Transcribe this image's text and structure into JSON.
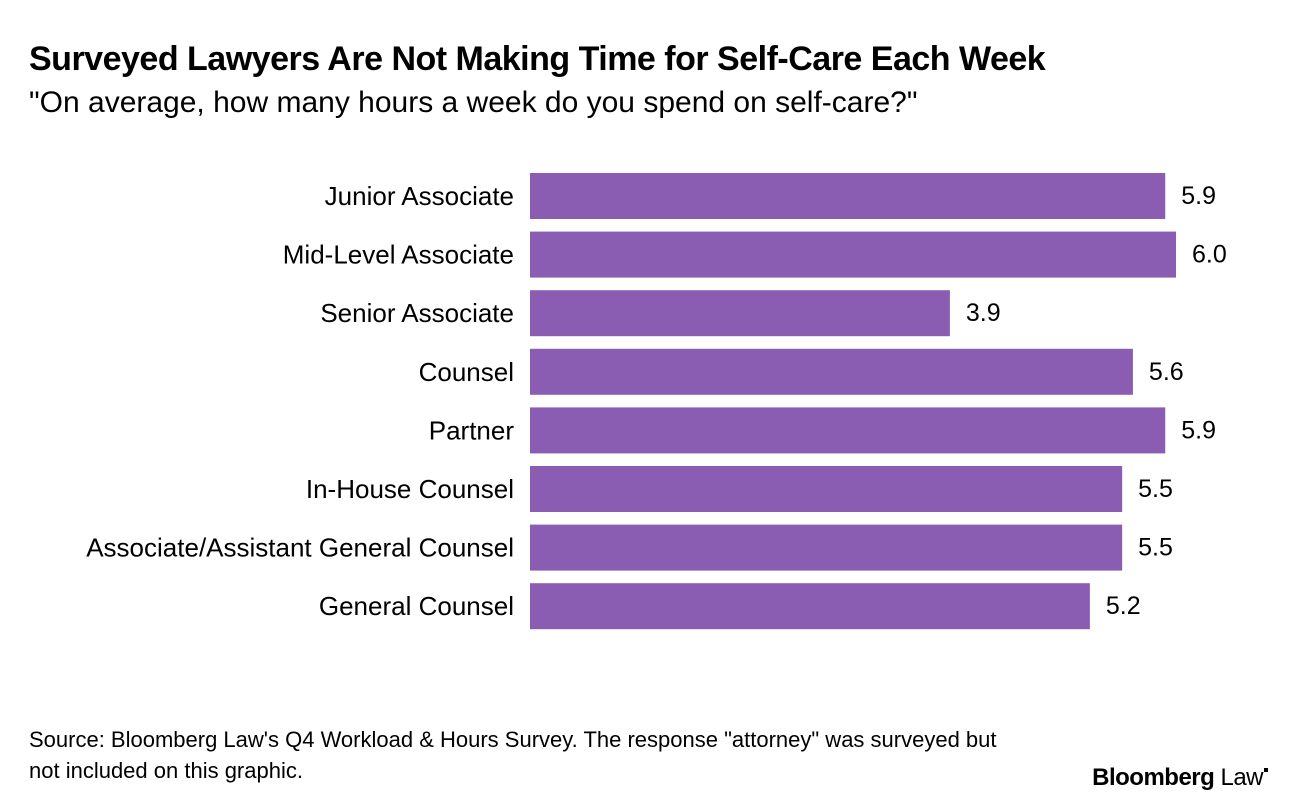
{
  "header": {
    "title": "Surveyed Lawyers Are Not Making Time for Self-Care Each Week",
    "subtitle": "\"On average, how many hours a week do you spend on self-care?\""
  },
  "footer": {
    "source": "Source: Bloomberg Law's Q4 Workload & Hours Survey. The response \"attorney\" was surveyed but not included on this graphic.",
    "logo_primary": "Bloomberg",
    "logo_secondary": "Law"
  },
  "colors": {
    "bar": "#8a5db3",
    "text": "#000000",
    "background": "#ffffff"
  },
  "chart_data": {
    "type": "bar",
    "orientation": "horizontal",
    "title": "Surveyed Lawyers Are Not Making Time for Self-Care Each Week",
    "subtitle": "\"On average, how many hours a week do you spend on self-care?\"",
    "xlabel": "",
    "ylabel": "",
    "categories": [
      "Junior Associate",
      "Mid-Level Associate",
      "Senior Associate",
      "Counsel",
      "Partner",
      "In-House Counsel",
      "Associate/Assistant General Counsel",
      "General Counsel"
    ],
    "values": [
      5.9,
      6.0,
      3.9,
      5.6,
      5.9,
      5.5,
      5.5,
      5.2
    ],
    "value_labels": [
      "5.9",
      "6.0",
      "3.9",
      "5.6",
      "5.9",
      "5.5",
      "5.5",
      "5.2"
    ],
    "xlim": [
      0,
      6.0
    ],
    "grid": false,
    "legend": "none"
  }
}
